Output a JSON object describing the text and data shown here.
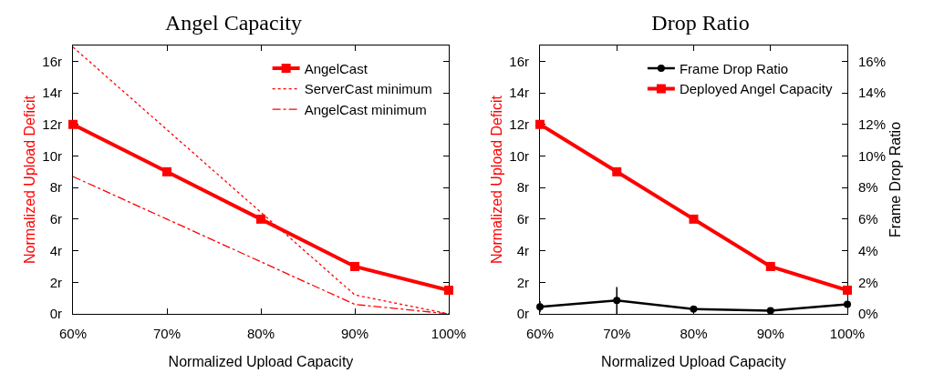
{
  "chart_data": [
    {
      "type": "line",
      "title": "Angel Capacity",
      "xlabel": "Normalized Upload Capacity",
      "ylabel": "Normalized Upload Deficit",
      "xlim": [
        60,
        100
      ],
      "xticks": [
        {
          "value": 60,
          "label": "60%"
        },
        {
          "value": 70,
          "label": "70%"
        },
        {
          "value": 80,
          "label": "80%"
        },
        {
          "value": 90,
          "label": "90%"
        },
        {
          "value": 100,
          "label": "100%"
        }
      ],
      "ylim": [
        0,
        17
      ],
      "yticks": [
        {
          "value": 0,
          "label": "0r"
        },
        {
          "value": 2,
          "label": "2r"
        },
        {
          "value": 4,
          "label": "4r"
        },
        {
          "value": 6,
          "label": "6r"
        },
        {
          "value": 8,
          "label": "8r"
        },
        {
          "value": 10,
          "label": "10r"
        },
        {
          "value": 12,
          "label": "12r"
        },
        {
          "value": 14,
          "label": "14r"
        },
        {
          "value": 16,
          "label": "16r"
        }
      ],
      "grid": false,
      "legend": "top right",
      "x": [
        60,
        70,
        80,
        90,
        100
      ],
      "series": [
        {
          "name": "AngelCast",
          "color": "#ff0000",
          "marker": "square",
          "line_style": "solid",
          "values": [
            12,
            9,
            6,
            3,
            1.5
          ]
        },
        {
          "name": "ServerCast minimum",
          "color": "#ff0000",
          "marker": "none",
          "line_style": "dotted",
          "x": [
            60,
            90,
            100
          ],
          "values": [
            16.9,
            1.2,
            0
          ]
        },
        {
          "name": "AngelCast minimum",
          "color": "#ff0000",
          "marker": "none",
          "line_style": "dashed",
          "x": [
            60,
            70,
            80,
            90,
            100
          ],
          "values": [
            8.7,
            6,
            3.3,
            0.6,
            0
          ]
        }
      ]
    },
    {
      "type": "line",
      "title": "Drop Ratio",
      "xlabel": "Normalized Upload Capacity",
      "ylabel": "Normalized Upload Deficit",
      "y2label": "Frame Drop Ratio",
      "xlim": [
        60,
        100
      ],
      "xticks": [
        {
          "value": 60,
          "label": "60%"
        },
        {
          "value": 70,
          "label": "70%"
        },
        {
          "value": 80,
          "label": "80%"
        },
        {
          "value": 90,
          "label": "90%"
        },
        {
          "value": 100,
          "label": "100%"
        }
      ],
      "ylim": [
        0,
        17
      ],
      "yticks": [
        {
          "value": 0,
          "label": "0r"
        },
        {
          "value": 2,
          "label": "2r"
        },
        {
          "value": 4,
          "label": "4r"
        },
        {
          "value": 6,
          "label": "6r"
        },
        {
          "value": 8,
          "label": "8r"
        },
        {
          "value": 10,
          "label": "10r"
        },
        {
          "value": 12,
          "label": "12r"
        },
        {
          "value": 14,
          "label": "14r"
        },
        {
          "value": 16,
          "label": "16r"
        }
      ],
      "y2lim": [
        0,
        17
      ],
      "y2ticks": [
        {
          "value": 0,
          "label": "0%"
        },
        {
          "value": 2,
          "label": "2%"
        },
        {
          "value": 4,
          "label": "4%"
        },
        {
          "value": 6,
          "label": "6%"
        },
        {
          "value": 8,
          "label": "8%"
        },
        {
          "value": 10,
          "label": "10%"
        },
        {
          "value": 12,
          "label": "12%"
        },
        {
          "value": 14,
          "label": "14%"
        },
        {
          "value": 16,
          "label": "16%"
        }
      ],
      "grid": false,
      "legend": "top right",
      "x": [
        60,
        70,
        80,
        90,
        100
      ],
      "series": [
        {
          "name": "Frame Drop Ratio",
          "color": "#000000",
          "marker": "circle",
          "line_style": "solid",
          "axis": "y2",
          "values": [
            0.45,
            0.85,
            0.3,
            0.2,
            0.6
          ],
          "errors": [
            0.35,
            0.85,
            null,
            null,
            null
          ]
        },
        {
          "name": "Deployed Angel Capacity",
          "color": "#ff0000",
          "marker": "square",
          "line_style": "solid",
          "values": [
            12,
            9,
            6,
            3,
            1.5
          ]
        }
      ]
    }
  ]
}
